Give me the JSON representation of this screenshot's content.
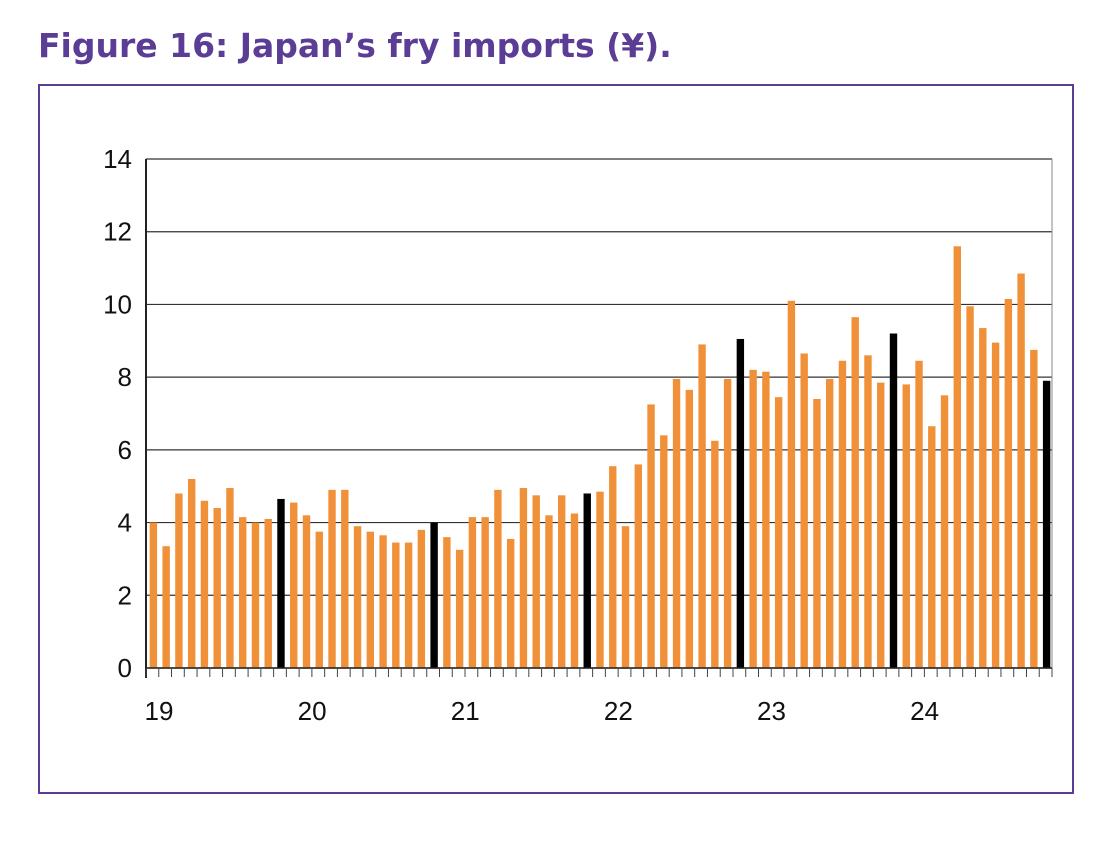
{
  "title": "Figure 16: Japan’s fry imports (¥).",
  "colors": {
    "title": "#5b3d96",
    "frame": "#5b3d96",
    "bar": "#f0913a",
    "highlight": "#000000",
    "grid": "#333333"
  },
  "chart_data": {
    "type": "bar",
    "title": "Figure 16: Japan’s fry imports (¥).",
    "xlabel": "",
    "ylabel": "",
    "ylim": [
      0,
      14
    ],
    "yticks": [
      0,
      2,
      4,
      6,
      8,
      10,
      12,
      14
    ],
    "grid": true,
    "legend": "none",
    "x_tick_labels": [
      "19",
      "20",
      "21",
      "22",
      "23",
      "24"
    ],
    "series": [
      {
        "values": [
          4.0,
          3.35,
          4.8,
          5.2,
          4.6,
          4.4,
          4.95,
          4.15,
          4.0,
          4.1,
          4.65,
          4.55,
          4.2,
          3.75,
          4.9,
          4.9,
          3.9,
          3.75,
          3.65,
          3.45,
          3.45,
          3.8,
          4.0,
          3.6,
          3.25,
          4.15,
          4.15,
          4.9,
          3.55,
          4.95,
          4.75,
          4.2,
          4.75,
          4.25,
          4.8,
          4.85,
          5.55,
          3.9,
          5.6,
          7.25,
          6.4,
          7.95,
          7.65,
          8.9,
          6.25,
          7.95,
          9.05,
          8.2,
          8.15,
          7.45,
          10.1,
          8.65,
          7.4,
          7.95,
          8.45,
          9.65,
          8.6,
          7.85,
          9.2,
          7.8,
          8.45,
          6.65,
          7.5,
          11.6,
          9.95,
          9.35,
          8.95,
          10.15,
          10.85,
          8.75,
          7.9
        ]
      }
    ],
    "highlighted_bars": [
      10,
      22,
      34,
      46,
      58,
      70
    ]
  }
}
